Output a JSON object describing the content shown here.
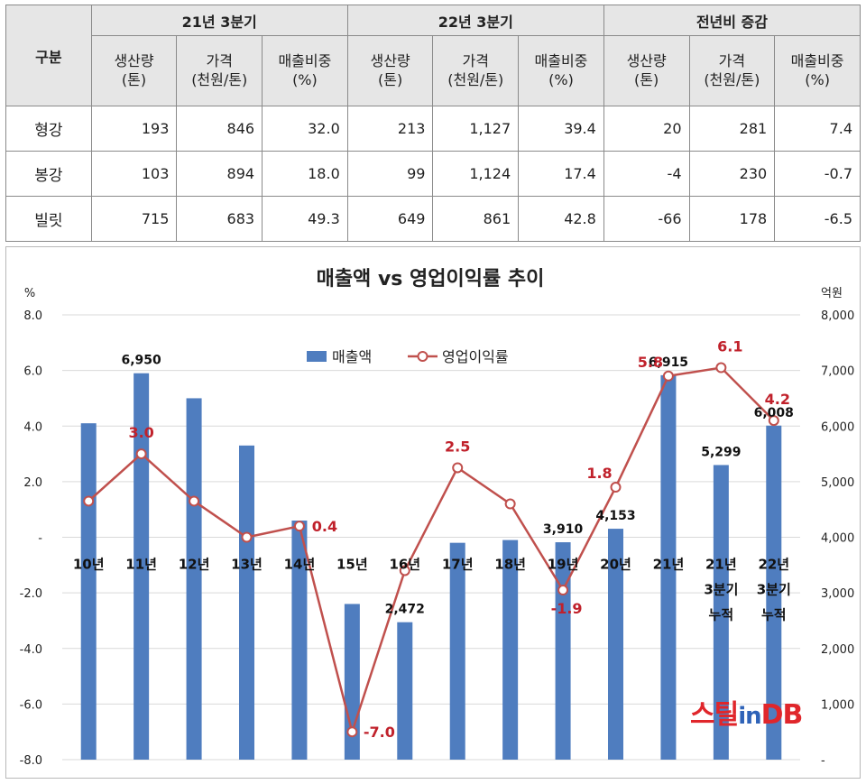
{
  "table": {
    "corner": "구분",
    "groups": [
      "21년 3분기",
      "22년 3분기",
      "전년비 증감"
    ],
    "subheaders": [
      [
        "생산량",
        "(톤)"
      ],
      [
        "가격",
        "(천원/톤)"
      ],
      [
        "매출비중",
        "(%)"
      ]
    ],
    "rows": [
      {
        "name": "형강",
        "values": [
          "193",
          "846",
          "32.0",
          "213",
          "1,127",
          "39.4",
          "20",
          "281",
          "7.4"
        ]
      },
      {
        "name": "봉강",
        "values": [
          "103",
          "894",
          "18.0",
          "99",
          "1,124",
          "17.4",
          "-4",
          "230",
          "-0.7"
        ]
      },
      {
        "name": "빌릿",
        "values": [
          "715",
          "683",
          "49.3",
          "649",
          "861",
          "42.8",
          "-66",
          "178",
          "-6.5"
        ]
      }
    ]
  },
  "chart_data": {
    "type": "bar",
    "title": "매출액 vs 영업이익률 추이",
    "y_left_unit": "%",
    "y_right_unit": "억원",
    "y_left_ticks": [
      "8.0",
      "6.0",
      "4.0",
      "2.0",
      "-",
      "-2.0",
      "-4.0",
      "-6.0",
      "-8.0"
    ],
    "y_left_range": [
      -8,
      8
    ],
    "y_right_ticks": [
      "8,000",
      "7,000",
      "6,000",
      "5,000",
      "4,000",
      "3,000",
      "2,000",
      "1,000",
      "-"
    ],
    "y_right_range": [
      0,
      8000
    ],
    "categories": [
      [
        "10년"
      ],
      [
        "11년"
      ],
      [
        "12년"
      ],
      [
        "13년"
      ],
      [
        "14년"
      ],
      [
        "15년"
      ],
      [
        "16년"
      ],
      [
        "17년"
      ],
      [
        "18년"
      ],
      [
        "19년"
      ],
      [
        "20년"
      ],
      [
        "21년"
      ],
      [
        "21년",
        "3분기",
        "누적"
      ],
      [
        "22년",
        "3분기",
        "누적"
      ]
    ],
    "series": [
      {
        "name": "매출액",
        "type": "bar",
        "axis": "right",
        "color": "#4f7dbf",
        "values": [
          6050,
          6950,
          6500,
          5650,
          4300,
          2800,
          2472,
          3900,
          3950,
          3910,
          4153,
          6915,
          5299,
          6008
        ],
        "labels": [
          "",
          "6,950",
          "",
          "",
          "",
          "",
          "2,472",
          "",
          "",
          "3,910",
          "4,153",
          "6,915",
          "5,299",
          "6,008"
        ]
      },
      {
        "name": "영업이익률",
        "type": "line",
        "axis": "left",
        "color": "#c0504d",
        "values": [
          1.3,
          3.0,
          1.3,
          0.0,
          0.4,
          -7.0,
          -1.2,
          2.5,
          1.2,
          -1.9,
          1.8,
          5.8,
          6.1,
          4.2
        ],
        "labels": [
          "",
          "3.0",
          "",
          "",
          "0.4",
          "-7.0",
          "",
          "2.5",
          "",
          "-1.9",
          "1.8",
          "5.8",
          "6.1",
          "4.2"
        ]
      }
    ],
    "grid": true,
    "legend_position": "top-center"
  },
  "logo": {
    "part1": "스틸",
    "part2": "in",
    "part3": "DB"
  }
}
